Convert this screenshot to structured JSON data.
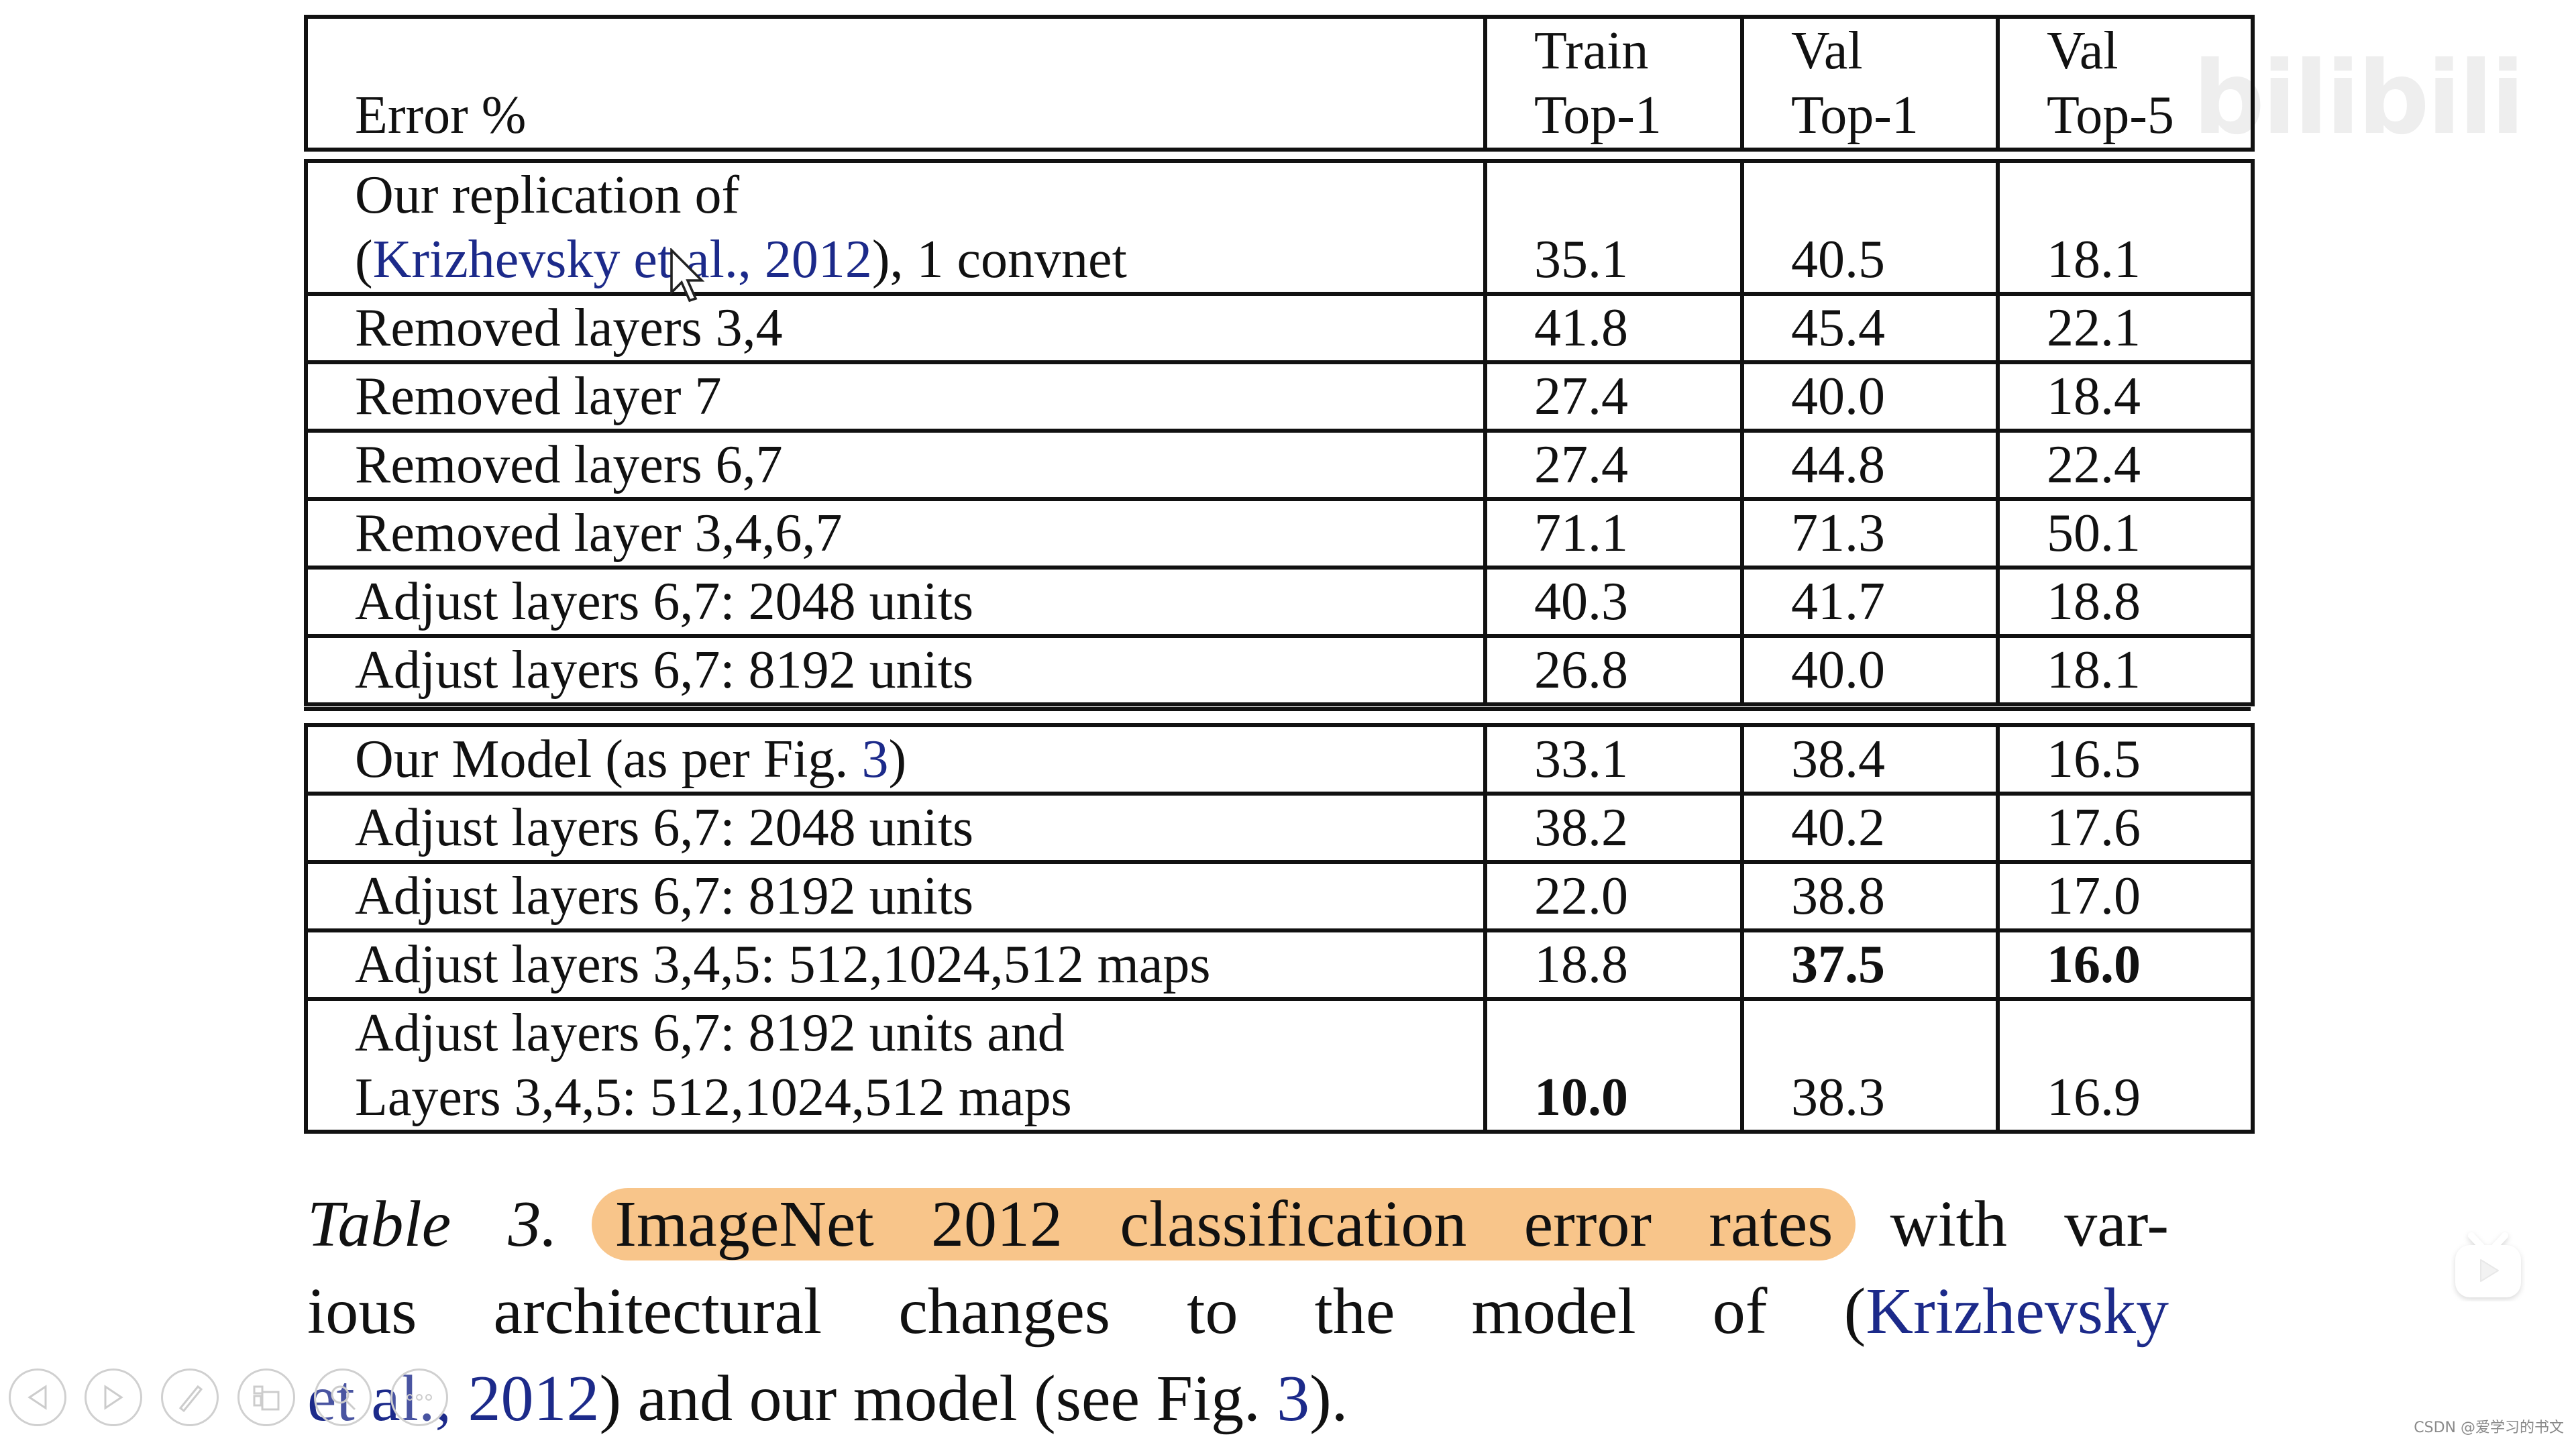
{
  "table": {
    "header": {
      "col0": "Error %",
      "col1": [
        "Train",
        "Top-1"
      ],
      "col2": [
        "Val",
        "Top-1"
      ],
      "col3": [
        "Val",
        "Top-5"
      ]
    },
    "block1": [
      {
        "label_line1": "Our replication of",
        "label_link": "Krizhevsky et al., 2012",
        "label_suffix": "), 1 convnet",
        "label_prefix": "(",
        "train": "35.1",
        "val1": "40.5",
        "val5": "18.1"
      },
      {
        "label": "Removed layers 3,4",
        "train": "41.8",
        "val1": "45.4",
        "val5": "22.1"
      },
      {
        "label": "Removed layer 7",
        "train": "27.4",
        "val1": "40.0",
        "val5": "18.4"
      },
      {
        "label": "Removed layers 6,7",
        "train": "27.4",
        "val1": "44.8",
        "val5": "22.4"
      },
      {
        "label": "Removed layer 3,4,6,7",
        "train": "71.1",
        "val1": "71.3",
        "val5": "50.1"
      },
      {
        "label": "Adjust layers 6,7: 2048 units",
        "train": "40.3",
        "val1": "41.7",
        "val5": "18.8"
      },
      {
        "label": "Adjust layers 6,7: 8192 units",
        "train": "26.8",
        "val1": "40.0",
        "val5": "18.1"
      }
    ],
    "block2": [
      {
        "label_prefix": "Our Model (as per Fig. ",
        "label_link": "3",
        "label_suffix": ")",
        "train": "33.1",
        "val1": "38.4",
        "val5": "16.5"
      },
      {
        "label": "Adjust layers 6,7: 2048 units",
        "train": "38.2",
        "val1": "40.2",
        "val5": "17.6"
      },
      {
        "label": "Adjust layers 6,7: 8192 units",
        "train": "22.0",
        "val1": "38.8",
        "val5": "17.0"
      },
      {
        "label": "Adjust layers 3,4,5: 512,1024,512 maps",
        "train": "18.8",
        "val1": "37.5",
        "val5": "16.0"
      },
      {
        "label_line1": "Adjust layers 6,7: 8192 units and",
        "label_line2": "Layers 3,4,5: 512,1024,512 maps",
        "train": "10.0",
        "val1": "38.3",
        "val5": "16.9"
      }
    ]
  },
  "caption": {
    "table_label": "Table 3.",
    "highlighted": "ImageNet 2012 classification error rates",
    "line1_rest": "with var-",
    "line2_prefix": "ious architectural changes to the model of (",
    "line2_link": "Krizhevsky",
    "line3_link1": "et al., 2012",
    "line3_mid": ") and our model (see Fig. ",
    "line3_link2": "3",
    "line3_end": ")."
  },
  "overlay": {
    "watermark": "bilibili",
    "credit": "CSDN @爱学习的书文",
    "highlight_color": "#f8c58a",
    "link_color": "#1c2a8a",
    "controls": [
      "prev-icon",
      "next-icon",
      "pen-icon",
      "slides-icon",
      "zoom-icon",
      "more-icon"
    ]
  }
}
